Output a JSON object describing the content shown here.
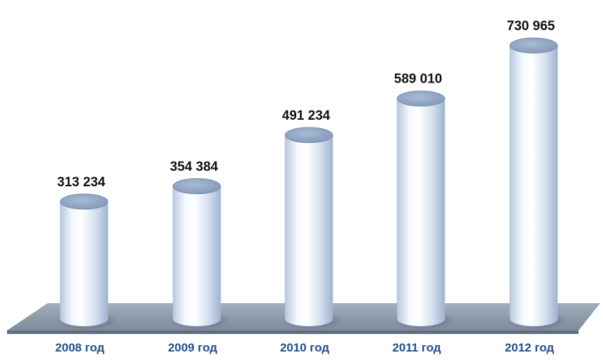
{
  "chart_data": {
    "type": "bar",
    "style": "3d-cylinder",
    "categories": [
      "2008 год",
      "2009 год",
      "2010 год",
      "2011 год",
      "2012 год"
    ],
    "values": [
      313234,
      354384,
      491234,
      589010,
      730965
    ],
    "value_labels": [
      "313 234",
      "354 384",
      "491 234",
      "589 010",
      "730 965"
    ],
    "title": "",
    "xlabel": "",
    "ylabel": "",
    "ylim": [
      0,
      800000
    ],
    "grid": false,
    "legend": "none"
  },
  "colors": {
    "floor": "#8d9bab",
    "floor_dark": "#5f6f82",
    "cylinder_light": "#ffffff",
    "cylinder_mid": "#d9e4f3",
    "cylinder_dark": "#9fb3cf",
    "cylinder_top": "#8fa4c2",
    "category_text": "#1f4e8c",
    "value_text": "#111111"
  }
}
